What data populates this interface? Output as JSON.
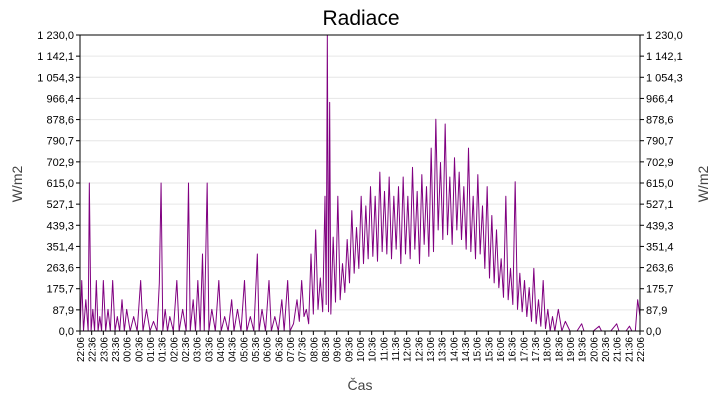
{
  "chart_data": {
    "type": "line",
    "title": "Radiace",
    "xlabel": "Čas",
    "ylabel": "W/m2",
    "ylabel_right": "W/m2",
    "ylim": [
      0,
      1230.0
    ],
    "y_ticks": [
      "0,0",
      "87,9",
      "175,7",
      "263,6",
      "351,4",
      "439,3",
      "527,1",
      "615,0",
      "702,9",
      "790,7",
      "878,6",
      "966,4",
      "1 054,3",
      "1 142,1",
      "1 230,0"
    ],
    "x_ticks": [
      "22:06",
      "22:36",
      "23:06",
      "23:36",
      "00:06",
      "00:36",
      "01:06",
      "01:36",
      "02:06",
      "02:36",
      "03:06",
      "03:36",
      "04:06",
      "04:36",
      "05:06",
      "05:36",
      "06:06",
      "06:36",
      "07:06",
      "07:36",
      "08:06",
      "08:36",
      "09:06",
      "09:36",
      "10:06",
      "10:36",
      "11:06",
      "11:36",
      "12:06",
      "12:36",
      "13:06",
      "13:36",
      "14:06",
      "14:36",
      "15:06",
      "15:36",
      "16:06",
      "16:36",
      "17:06",
      "17:36",
      "18:06",
      "18:36",
      "19:06",
      "19:36",
      "20:06",
      "20:36",
      "21:06",
      "21:36",
      "22:06"
    ],
    "grid": true,
    "series_color": "#800080",
    "series": [
      {
        "values": [
          [
            0,
            0
          ],
          [
            0.15,
            210
          ],
          [
            0.3,
            0
          ],
          [
            0.5,
            130
          ],
          [
            0.7,
            0
          ],
          [
            0.8,
            615
          ],
          [
            0.95,
            0
          ],
          [
            1.1,
            90
          ],
          [
            1.25,
            0
          ],
          [
            1.4,
            210
          ],
          [
            1.55,
            0
          ],
          [
            1.7,
            60
          ],
          [
            1.85,
            0
          ],
          [
            2.0,
            210
          ],
          [
            2.2,
            0
          ],
          [
            2.4,
            90
          ],
          [
            2.6,
            0
          ],
          [
            2.8,
            210
          ],
          [
            3.0,
            0
          ],
          [
            3.2,
            60
          ],
          [
            3.4,
            0
          ],
          [
            3.6,
            130
          ],
          [
            3.8,
            0
          ],
          [
            4.0,
            90
          ],
          [
            4.3,
            0
          ],
          [
            4.6,
            60
          ],
          [
            4.9,
            0
          ],
          [
            5.2,
            210
          ],
          [
            5.4,
            0
          ],
          [
            5.7,
            90
          ],
          [
            6.0,
            0
          ],
          [
            6.3,
            40
          ],
          [
            6.6,
            0
          ],
          [
            6.8,
            200
          ],
          [
            6.95,
            615
          ],
          [
            7.1,
            0
          ],
          [
            7.3,
            90
          ],
          [
            7.5,
            0
          ],
          [
            7.7,
            60
          ],
          [
            8.0,
            0
          ],
          [
            8.3,
            210
          ],
          [
            8.5,
            0
          ],
          [
            8.8,
            90
          ],
          [
            9.1,
            0
          ],
          [
            9.3,
            615
          ],
          [
            9.45,
            0
          ],
          [
            9.7,
            130
          ],
          [
            9.9,
            0
          ],
          [
            10.1,
            210
          ],
          [
            10.3,
            0
          ],
          [
            10.5,
            320
          ],
          [
            10.65,
            0
          ],
          [
            10.9,
            615
          ],
          [
            11.05,
            0
          ],
          [
            11.3,
            90
          ],
          [
            11.6,
            0
          ],
          [
            11.9,
            210
          ],
          [
            12.1,
            0
          ],
          [
            12.4,
            60
          ],
          [
            12.7,
            0
          ],
          [
            13.0,
            130
          ],
          [
            13.2,
            0
          ],
          [
            13.5,
            90
          ],
          [
            13.8,
            0
          ],
          [
            14.1,
            210
          ],
          [
            14.3,
            0
          ],
          [
            14.6,
            60
          ],
          [
            14.9,
            0
          ],
          [
            15.2,
            320
          ],
          [
            15.35,
            0
          ],
          [
            15.6,
            90
          ],
          [
            15.9,
            0
          ],
          [
            16.2,
            210
          ],
          [
            16.4,
            0
          ],
          [
            16.7,
            60
          ],
          [
            17.0,
            0
          ],
          [
            17.3,
            130
          ],
          [
            17.5,
            0
          ],
          [
            17.8,
            210
          ],
          [
            18.0,
            0
          ],
          [
            18.3,
            30
          ],
          [
            18.6,
            130
          ],
          [
            18.8,
            40
          ],
          [
            19.0,
            210
          ],
          [
            19.2,
            60
          ],
          [
            19.4,
            90
          ],
          [
            19.6,
            30
          ],
          [
            19.8,
            320
          ],
          [
            20.0,
            70
          ],
          [
            20.2,
            420
          ],
          [
            20.4,
            90
          ],
          [
            20.6,
            220
          ],
          [
            20.8,
            80
          ],
          [
            21.0,
            560
          ],
          [
            21.1,
            110
          ],
          [
            21.2,
            1230
          ],
          [
            21.3,
            80
          ],
          [
            21.4,
            950
          ],
          [
            21.5,
            70
          ],
          [
            21.7,
            390
          ],
          [
            21.9,
            120
          ],
          [
            22.1,
            560
          ],
          [
            22.3,
            130
          ],
          [
            22.5,
            280
          ],
          [
            22.7,
            160
          ],
          [
            22.9,
            380
          ],
          [
            23.1,
            200
          ],
          [
            23.3,
            500
          ],
          [
            23.5,
            240
          ],
          [
            23.7,
            430
          ],
          [
            23.9,
            260
          ],
          [
            24.1,
            560
          ],
          [
            24.3,
            280
          ],
          [
            24.5,
            520
          ],
          [
            24.7,
            300
          ],
          [
            24.9,
            600
          ],
          [
            25.1,
            310
          ],
          [
            25.3,
            560
          ],
          [
            25.5,
            290
          ],
          [
            25.7,
            660
          ],
          [
            25.9,
            330
          ],
          [
            26.1,
            580
          ],
          [
            26.3,
            320
          ],
          [
            26.5,
            640
          ],
          [
            26.7,
            300
          ],
          [
            26.9,
            560
          ],
          [
            27.1,
            340
          ],
          [
            27.3,
            600
          ],
          [
            27.5,
            280
          ],
          [
            27.7,
            640
          ],
          [
            27.9,
            320
          ],
          [
            28.1,
            560
          ],
          [
            28.3,
            300
          ],
          [
            28.5,
            680
          ],
          [
            28.7,
            340
          ],
          [
            28.9,
            580
          ],
          [
            29.1,
            280
          ],
          [
            29.3,
            650
          ],
          [
            29.5,
            360
          ],
          [
            29.7,
            600
          ],
          [
            29.9,
            310
          ],
          [
            30.1,
            760
          ],
          [
            30.3,
            330
          ],
          [
            30.5,
            880
          ],
          [
            30.7,
            420
          ],
          [
            30.9,
            700
          ],
          [
            31.1,
            380
          ],
          [
            31.3,
            860
          ],
          [
            31.5,
            400
          ],
          [
            31.7,
            640
          ],
          [
            31.9,
            360
          ],
          [
            32.1,
            720
          ],
          [
            32.3,
            420
          ],
          [
            32.5,
            660
          ],
          [
            32.7,
            380
          ],
          [
            32.9,
            600
          ],
          [
            33.1,
            340
          ],
          [
            33.3,
            760
          ],
          [
            33.5,
            330
          ],
          [
            33.7,
            560
          ],
          [
            33.9,
            300
          ],
          [
            34.1,
            650
          ],
          [
            34.3,
            320
          ],
          [
            34.5,
            520
          ],
          [
            34.7,
            260
          ],
          [
            34.9,
            600
          ],
          [
            35.1,
            220
          ],
          [
            35.3,
            480
          ],
          [
            35.5,
            200
          ],
          [
            35.7,
            420
          ],
          [
            35.9,
            180
          ],
          [
            36.1,
            300
          ],
          [
            36.3,
            140
          ],
          [
            36.5,
            560
          ],
          [
            36.7,
            130
          ],
          [
            36.9,
            260
          ],
          [
            37.1,
            110
          ],
          [
            37.3,
            620
          ],
          [
            37.5,
            90
          ],
          [
            37.7,
            240
          ],
          [
            37.9,
            80
          ],
          [
            38.1,
            210
          ],
          [
            38.3,
            60
          ],
          [
            38.5,
            180
          ],
          [
            38.7,
            40
          ],
          [
            38.9,
            260
          ],
          [
            39.1,
            30
          ],
          [
            39.3,
            130
          ],
          [
            39.5,
            20
          ],
          [
            39.7,
            210
          ],
          [
            39.9,
            10
          ],
          [
            40.1,
            90
          ],
          [
            40.3,
            0
          ],
          [
            40.5,
            60
          ],
          [
            40.7,
            0
          ],
          [
            41.0,
            90
          ],
          [
            41.3,
            0
          ],
          [
            41.6,
            40
          ],
          [
            42.0,
            0
          ],
          [
            42.6,
            0
          ],
          [
            43.0,
            30
          ],
          [
            43.2,
            0
          ],
          [
            44.0,
            0
          ],
          [
            44.5,
            20
          ],
          [
            44.7,
            0
          ],
          [
            45.5,
            0
          ],
          [
            46.0,
            30
          ],
          [
            46.2,
            0
          ],
          [
            46.8,
            0
          ],
          [
            47.1,
            20
          ],
          [
            47.3,
            0
          ],
          [
            47.6,
            0
          ],
          [
            47.8,
            130
          ],
          [
            48.0,
            60
          ]
        ]
      }
    ]
  }
}
